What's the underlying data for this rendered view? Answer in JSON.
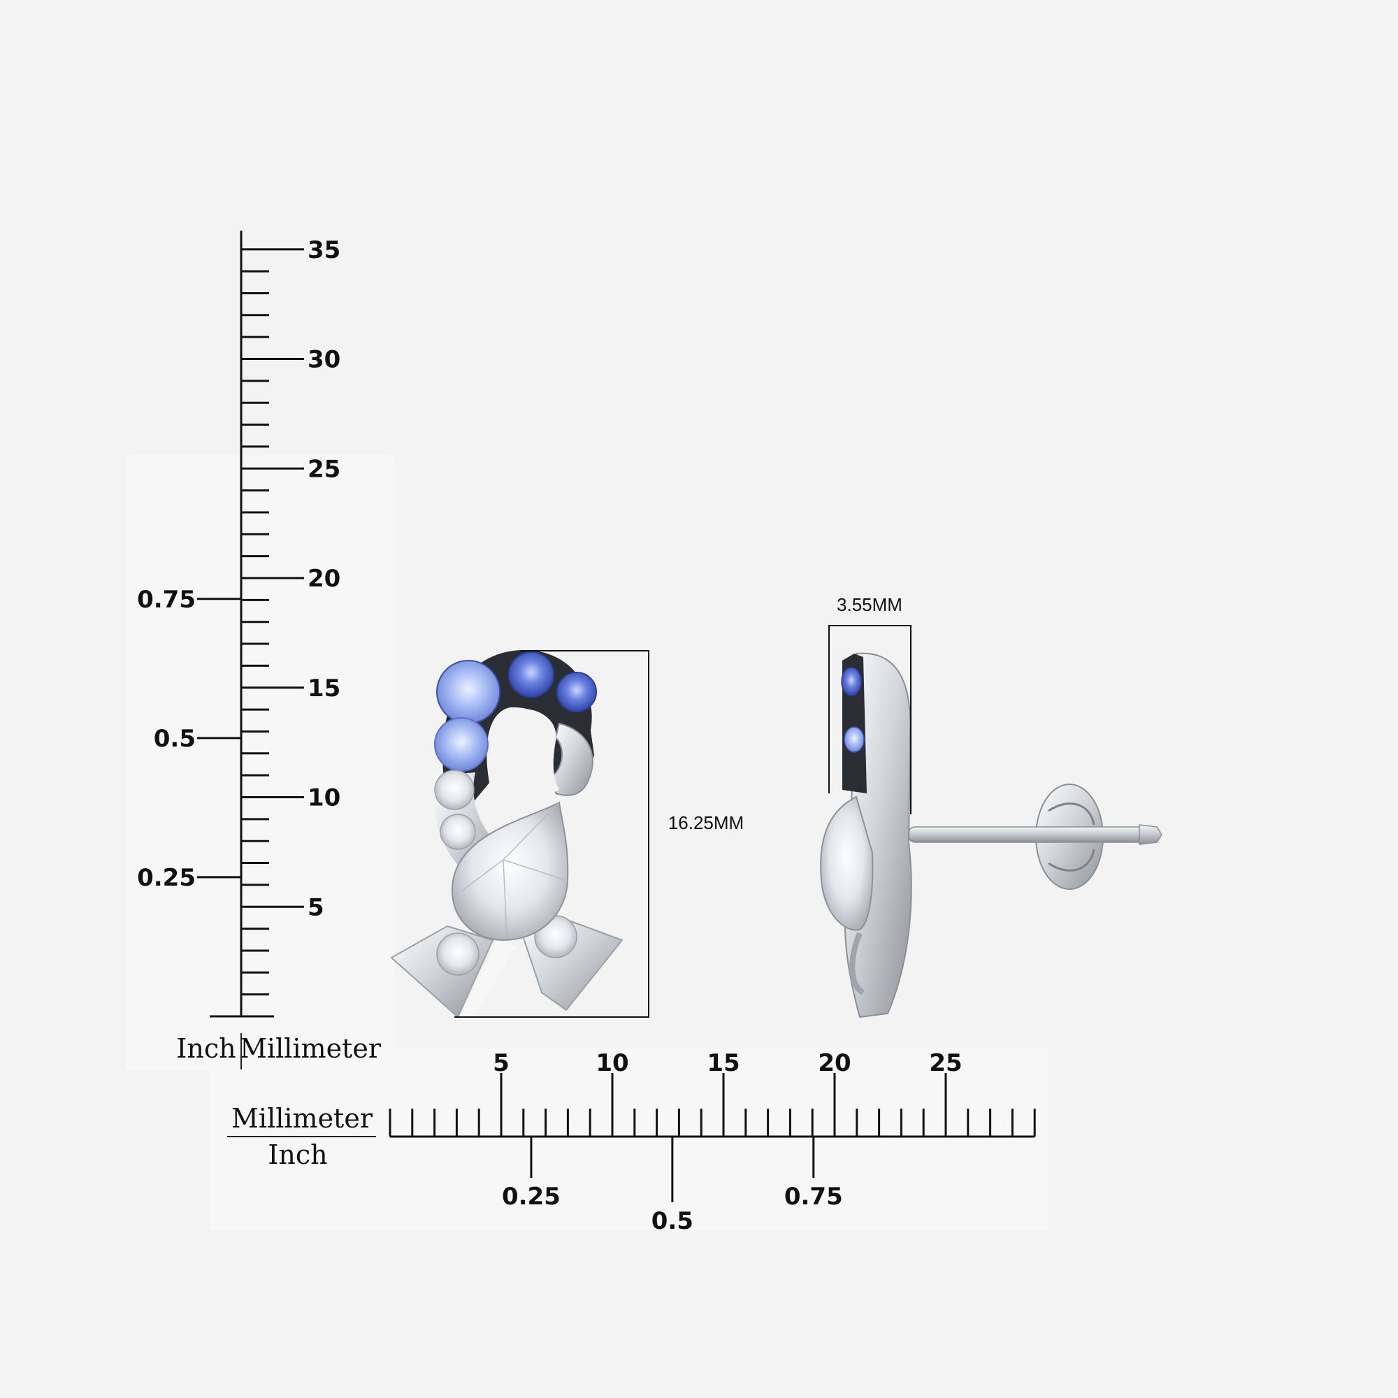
{
  "vertical_ruler": {
    "mm_max": 35,
    "mm_labels": [
      "5",
      "10",
      "15",
      "20",
      "25",
      "30",
      "35"
    ],
    "inch_labels": [
      "0.25",
      "0.5",
      "0.75"
    ],
    "inch_label": "Inch",
    "mm_label": "Millimeter"
  },
  "horizontal_ruler": {
    "mm_max": 29,
    "mm_labels": [
      "5",
      "10",
      "15",
      "20",
      "25"
    ],
    "inch_labels": [
      "0.25",
      "0.5",
      "0.75"
    ],
    "mm_label": "Millimeter",
    "inch_label": "Inch"
  },
  "dimensions": {
    "height": "16.25MM",
    "width": "3.55MM"
  },
  "colors": {
    "background": "#f3f3f3",
    "metal": "#d9dbde",
    "sapphire_dark": "#4a62c8",
    "sapphire_light": "#9fb6f2",
    "diamond": "#eef0f2"
  }
}
